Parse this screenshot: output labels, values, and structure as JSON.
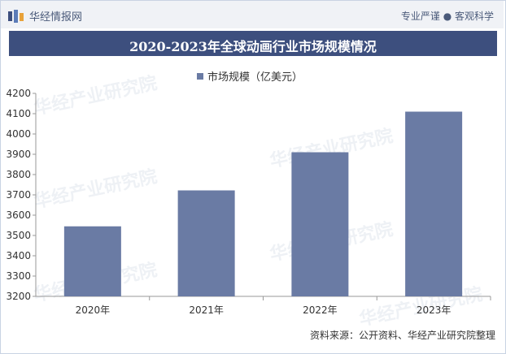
{
  "header": {
    "logo_text": "华经情报网",
    "slogan": "专业严谨 ● 客观科学"
  },
  "watermark_text": "华经产业研究院",
  "source_text": "资料来源：公开资料、华经产业研究院整理",
  "chart_data": {
    "type": "bar",
    "title": "2020-2023年全球动画行业市场规模情况",
    "categories": [
      "2020年",
      "2021年",
      "2022年",
      "2023年"
    ],
    "series": [
      {
        "name": "市场规模（亿美元）",
        "values": [
          3545,
          3722,
          3910,
          4110
        ]
      }
    ],
    "ylim": [
      3200,
      4200
    ],
    "yticks": [
      3200,
      3300,
      3400,
      3500,
      3600,
      3700,
      3800,
      3900,
      4000,
      4100,
      4200
    ],
    "bar_color": "#6a7ba4",
    "legend_position": "top-center",
    "grid": false
  }
}
